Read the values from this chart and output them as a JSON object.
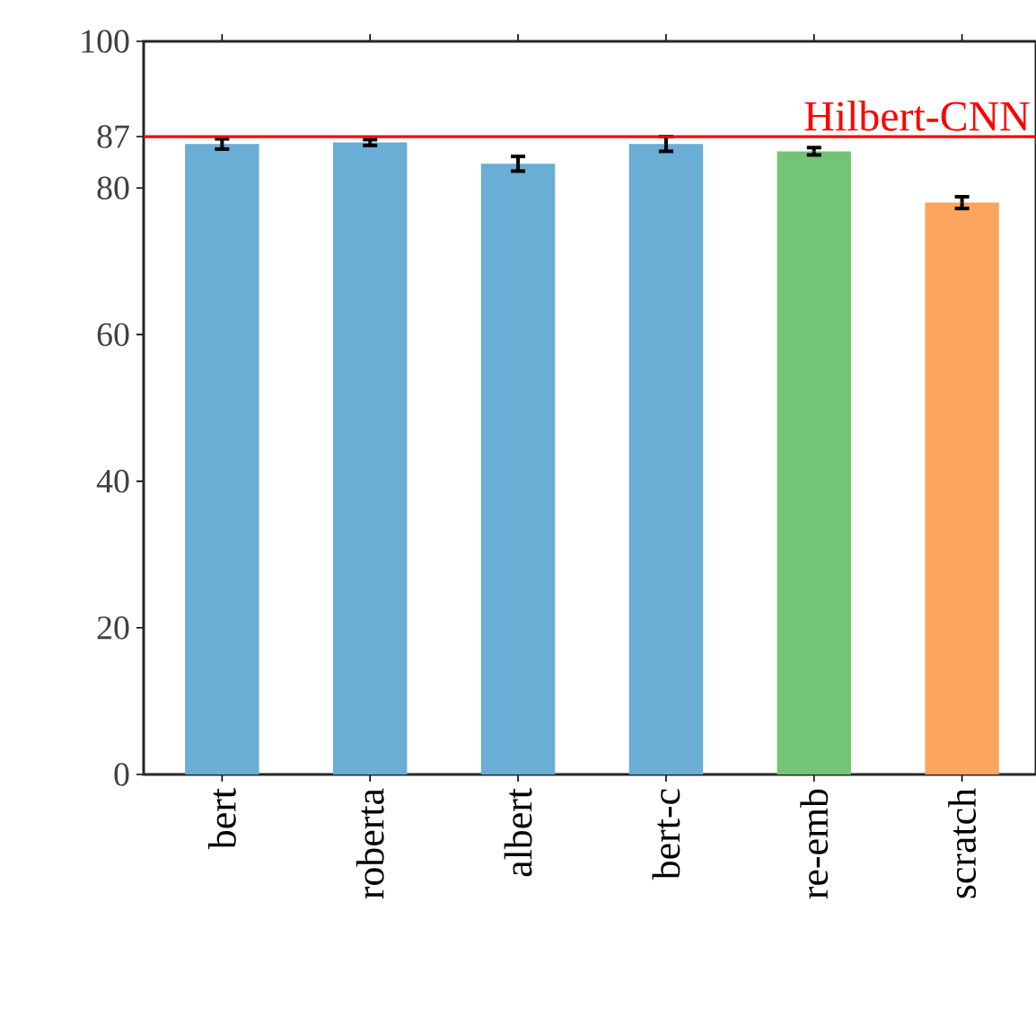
{
  "chart_data": {
    "type": "bar",
    "categories": [
      "bert",
      "roberta",
      "albert",
      "bert-c",
      "re-emb",
      "scratch"
    ],
    "values": [
      86.0,
      86.2,
      83.3,
      86.0,
      85.0,
      78.0
    ],
    "errors": [
      0.7,
      0.4,
      1.0,
      1.0,
      0.5,
      0.8
    ],
    "colors": [
      "#6aadd5",
      "#6aadd5",
      "#6aadd5",
      "#6aadd5",
      "#74c476",
      "#fda45e"
    ],
    "ylim": [
      0,
      100
    ],
    "yticks": [
      0,
      20,
      40,
      60,
      80,
      87,
      100
    ],
    "ref_lines": [
      {
        "axis": "y",
        "value": 87,
        "label": "Hilbert-CNN",
        "color": "#ff0000"
      }
    ],
    "grid": false
  }
}
